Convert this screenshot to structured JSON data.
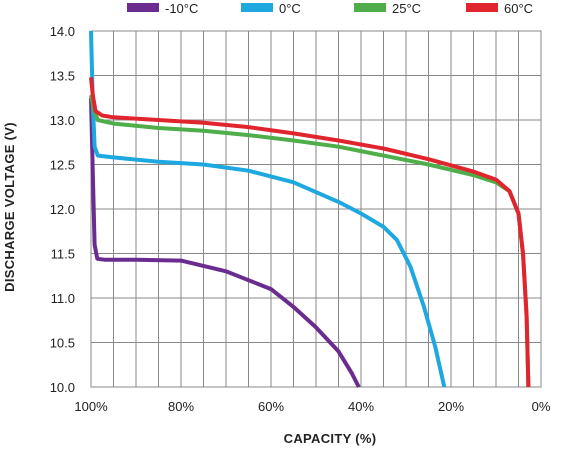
{
  "chart_data": {
    "type": "line",
    "xlabel": "CAPACITY (%)",
    "ylabel": "DISCHARGE VOLTAGE (V)",
    "x_reversed": true,
    "xlim": [
      0,
      100
    ],
    "ylim": [
      10.0,
      14.0
    ],
    "x_ticks": [
      100,
      80,
      60,
      40,
      20,
      0
    ],
    "x_tick_labels": [
      "100%",
      "80%",
      "60%",
      "40%",
      "20%",
      "0%"
    ],
    "y_ticks": [
      10.0,
      10.5,
      11.0,
      11.5,
      12.0,
      12.5,
      13.0,
      13.5,
      14.0
    ],
    "y_tick_labels": [
      "10.0",
      "10.5",
      "11.0",
      "11.5",
      "12.0",
      "12.5",
      "13.0",
      "13.5",
      "14.0"
    ],
    "grid": true,
    "legend_position": "top",
    "series": [
      {
        "name": "-10°C",
        "color": "#6a2c8f",
        "points": [
          [
            100,
            13.25
          ],
          [
            99.6,
            12.4
          ],
          [
            99.2,
            11.6
          ],
          [
            98.6,
            11.44
          ],
          [
            97,
            11.43
          ],
          [
            90,
            11.43
          ],
          [
            80,
            11.42
          ],
          [
            70,
            11.3
          ],
          [
            60,
            11.1
          ],
          [
            55,
            10.9
          ],
          [
            50,
            10.67
          ],
          [
            45,
            10.4
          ],
          [
            42,
            10.15
          ],
          [
            40.5,
            10.0
          ]
        ]
      },
      {
        "name": "0°C",
        "color": "#1ea8e0",
        "points": [
          [
            100,
            14.0
          ],
          [
            99.6,
            13.2
          ],
          [
            99.2,
            12.7
          ],
          [
            98.5,
            12.6
          ],
          [
            95,
            12.58
          ],
          [
            85,
            12.53
          ],
          [
            75,
            12.5
          ],
          [
            65,
            12.43
          ],
          [
            55,
            12.3
          ],
          [
            45,
            12.08
          ],
          [
            40,
            11.95
          ],
          [
            35,
            11.8
          ],
          [
            32,
            11.65
          ],
          [
            29,
            11.35
          ],
          [
            26,
            10.9
          ],
          [
            23.5,
            10.45
          ],
          [
            21.5,
            10.0
          ]
        ]
      },
      {
        "name": "25°C",
        "color": "#4fae4a",
        "points": [
          [
            100,
            13.28
          ],
          [
            99.4,
            13.12
          ],
          [
            98.5,
            13.0
          ],
          [
            95,
            12.96
          ],
          [
            85,
            12.91
          ],
          [
            75,
            12.88
          ],
          [
            65,
            12.83
          ],
          [
            55,
            12.77
          ],
          [
            45,
            12.7
          ],
          [
            35,
            12.6
          ],
          [
            25,
            12.5
          ],
          [
            15,
            12.38
          ],
          [
            10,
            12.3
          ],
          [
            7,
            12.2
          ],
          [
            5,
            11.95
          ],
          [
            4,
            11.5
          ],
          [
            3.2,
            10.8
          ],
          [
            2.8,
            10.0
          ]
        ]
      },
      {
        "name": "60°C",
        "color": "#e0252f",
        "points": [
          [
            100,
            13.48
          ],
          [
            99.6,
            13.28
          ],
          [
            99,
            13.1
          ],
          [
            97.5,
            13.05
          ],
          [
            95,
            13.03
          ],
          [
            85,
            13.0
          ],
          [
            75,
            12.97
          ],
          [
            65,
            12.92
          ],
          [
            55,
            12.85
          ],
          [
            45,
            12.77
          ],
          [
            35,
            12.68
          ],
          [
            25,
            12.56
          ],
          [
            15,
            12.42
          ],
          [
            10,
            12.33
          ],
          [
            7,
            12.2
          ],
          [
            5,
            11.95
          ],
          [
            4,
            11.5
          ],
          [
            3.2,
            10.8
          ],
          [
            2.8,
            10.0
          ]
        ]
      }
    ]
  }
}
